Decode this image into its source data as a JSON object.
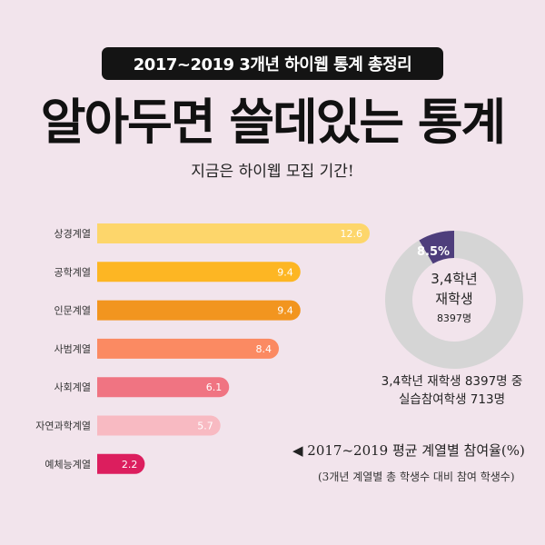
{
  "header": {
    "badge": "2017~2019 3개년 하이웹 통계 총정리",
    "headline": "알아두면 쓸데있는 통계",
    "tagline": "지금은 하이웹 모집 기간!"
  },
  "chart_data": [
    {
      "type": "bar",
      "orientation": "horizontal",
      "categories": [
        "상경계열",
        "공학계열",
        "인문계열",
        "사범계열",
        "사회계열",
        "자연과학계열",
        "예체능계열"
      ],
      "values": [
        12.6,
        9.4,
        9.4,
        8.4,
        6.1,
        5.7,
        2.2
      ],
      "data_labels": [
        "12.6",
        "9.4",
        "9.4",
        "8.4",
        "6.1",
        "5.7",
        "2.2"
      ],
      "colors": [
        "#fdd66b",
        "#fdb623",
        "#f2951f",
        "#fb8a62",
        "#f07482",
        "#f8bac2",
        "#dc1e5e"
      ],
      "grid": false
    },
    {
      "type": "pie",
      "style": "donut",
      "slices": [
        {
          "label": "실습참여학생",
          "value": 8.5,
          "color": "#4e3e7c"
        },
        {
          "label": "",
          "value": 91.5,
          "color": "#d5d5d5"
        }
      ],
      "data_labels": [
        "8.5%"
      ]
    }
  ],
  "donut": {
    "center_line1": "3,4학년",
    "center_line2": "재학생",
    "center_count": "8397명",
    "caption_line1": "3,4학년 재학생 8397명 중",
    "caption_line2": "실습참여학생 713명"
  },
  "legend": {
    "main": "◀ 2017~2019 평균 계열별 참여율(%)",
    "sub": "(3개년 계열별 총 학생수 대비 참여 학생수)"
  }
}
